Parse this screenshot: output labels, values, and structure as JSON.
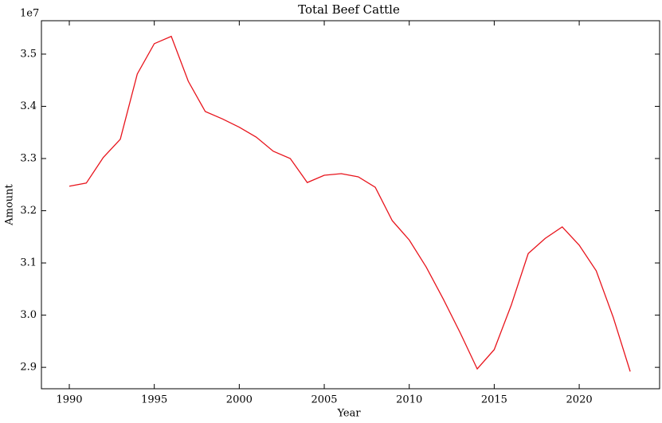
{
  "chart_data": {
    "type": "line",
    "title": "Total Beef Cattle",
    "x_label": "Year",
    "y_label": "Amount",
    "y_offset_label": "1e7",
    "x": [
      1990,
      1991,
      1992,
      1993,
      1994,
      1995,
      1996,
      1997,
      1998,
      1999,
      2000,
      2001,
      2002,
      2003,
      2004,
      2005,
      2006,
      2007,
      2008,
      2009,
      2010,
      2011,
      2012,
      2013,
      2014,
      2015,
      2016,
      2017,
      2018,
      2019,
      2020,
      2021,
      2022,
      2023
    ],
    "series": [
      {
        "color": "#e8141c",
        "values": [
          3.247,
          3.253,
          3.302,
          3.337,
          3.462,
          3.52,
          3.534,
          3.448,
          3.39,
          3.376,
          3.36,
          3.341,
          3.314,
          3.3,
          3.254,
          3.268,
          3.271,
          3.265,
          3.245,
          3.181,
          3.144,
          3.092,
          3.031,
          2.966,
          2.897,
          2.934,
          3.019,
          3.118,
          3.147,
          3.169,
          3.134,
          3.085,
          2.996,
          2.892
        ]
      }
    ],
    "xlim": [
      1988.36,
      2024.73
    ],
    "ylim": [
      2.859,
      3.564
    ],
    "xticks": [
      1990,
      1995,
      2000,
      2005,
      2010,
      2015,
      2020
    ],
    "yticks": [
      2.9,
      {
        "value": 3,
        "label": "3.0"
      },
      3.1,
      3.2,
      3.3,
      3.4,
      3.5
    ]
  }
}
